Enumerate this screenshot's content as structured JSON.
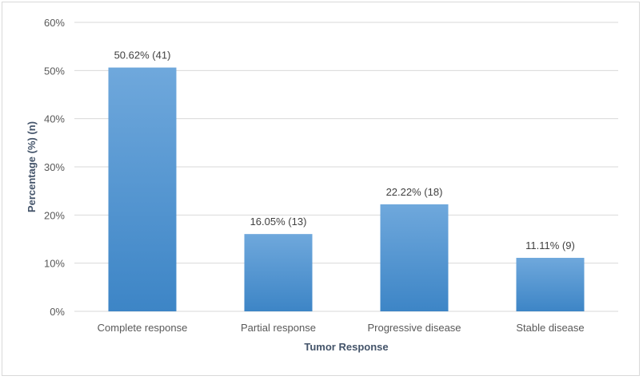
{
  "chart_data": {
    "type": "bar",
    "categories": [
      "Complete response",
      "Partial response",
      "Progressive disease",
      "Stable disease"
    ],
    "values": [
      50.62,
      16.05,
      22.22,
      11.11
    ],
    "counts": [
      41,
      13,
      18,
      9
    ],
    "data_labels": [
      "50.62% (41)",
      "16.05% (13)",
      "22.22% (18)",
      "11.11% (9)"
    ],
    "title": "",
    "xlabel": "Tumor Response",
    "ylabel": "Percentage (%) (n)",
    "ylim": [
      0,
      60
    ],
    "yticks": [
      0,
      10,
      20,
      30,
      40,
      50,
      60
    ],
    "ytick_labels": [
      "0%",
      "10%",
      "20%",
      "30%",
      "40%",
      "50%",
      "60%"
    ],
    "grid": true,
    "legend": "none",
    "colors": {
      "bar_top": "#6fa8dc",
      "bar_bottom": "#3d85c6",
      "grid": "#d9d9d9",
      "axis_title": "#44546a"
    }
  }
}
